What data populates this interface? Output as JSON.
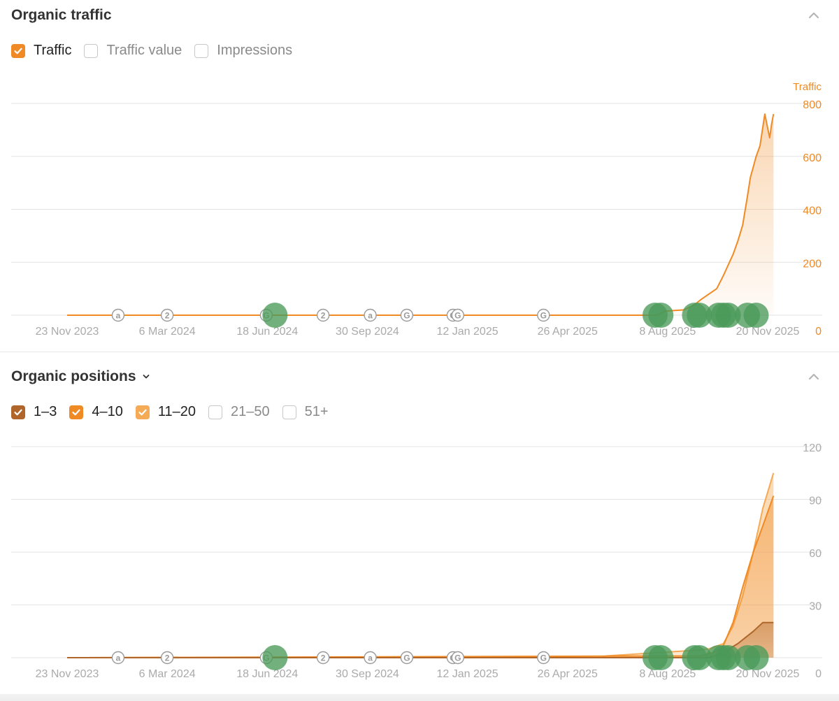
{
  "panels": {
    "traffic": {
      "title": "Organic traffic",
      "checkboxes": [
        {
          "label": "Traffic",
          "checked": true,
          "color": "#f08a24"
        },
        {
          "label": "Traffic value",
          "checked": false
        },
        {
          "label": "Impressions",
          "checked": false
        }
      ]
    },
    "positions": {
      "title": "Organic positions",
      "checkboxes": [
        {
          "label": "1–3",
          "checked": true,
          "color": "#b0662a"
        },
        {
          "label": "4–10",
          "checked": true,
          "color": "#f08a24"
        },
        {
          "label": "11–20",
          "checked": true,
          "color": "#f5aa55"
        },
        {
          "label": "21–50",
          "checked": false
        },
        {
          "label": "51+",
          "checked": false
        }
      ]
    }
  },
  "colors": {
    "traffic_line": "#f08a24",
    "pos_1_3": "#b0662a",
    "pos_4_10": "#f08a24",
    "pos_11_20": "#f5aa55",
    "axis_text": "#aaaaaa",
    "traffic_axis_text": "#f08a24",
    "gridline": "#e3e3e3",
    "update_dot": "#4a9a5a"
  },
  "chart_data": [
    {
      "type": "area",
      "title": "Organic traffic",
      "ylabel": "Traffic",
      "ylim": [
        0,
        800
      ],
      "yticks": [
        0,
        200,
        400,
        600,
        800
      ],
      "x_tick_labels": [
        "23 Nov 2023",
        "6 Mar 2024",
        "18 Jun 2024",
        "30 Sep 2024",
        "12 Jan 2025",
        "26 Apr 2025",
        "8 Aug 2025",
        "20 Nov 2025"
      ],
      "series": [
        {
          "values_by_date": [
            [
              "2023-11-23",
              0
            ],
            [
              "2025-07-28",
              0
            ],
            [
              "2025-08-05",
              15
            ],
            [
              "2025-08-15",
              18
            ],
            [
              "2025-08-25",
              20
            ],
            [
              "2025-09-05",
              40
            ],
            [
              "2025-09-12",
              60
            ],
            [
              "2025-09-20",
              80
            ],
            [
              "2025-09-28",
              100
            ],
            [
              "2025-10-05",
              150
            ],
            [
              "2025-10-10",
              190
            ],
            [
              "2025-10-15",
              230
            ],
            [
              "2025-10-20",
              280
            ],
            [
              "2025-10-25",
              340
            ],
            [
              "2025-10-30",
              450
            ],
            [
              "2025-11-02",
              520
            ],
            [
              "2025-11-05",
              560
            ],
            [
              "2025-11-08",
              600
            ],
            [
              "2025-11-12",
              640
            ],
            [
              "2025-11-17",
              760
            ],
            [
              "2025-11-22",
              670
            ],
            [
              "2025-11-24",
              720
            ],
            [
              "2025-11-26",
              760
            ]
          ]
        }
      ],
      "annotation_markers": [
        "a",
        "2",
        "G",
        "2",
        "a",
        "G",
        "G",
        "G",
        "G"
      ]
    },
    {
      "type": "area",
      "title": "Organic positions",
      "ylim": [
        0,
        120
      ],
      "yticks": [
        0,
        30,
        60,
        90,
        120
      ],
      "x_tick_labels": [
        "23 Nov 2023",
        "6 Mar 2024",
        "18 Jun 2024",
        "30 Sep 2024",
        "12 Jan 2025",
        "26 Apr 2025",
        "8 Aug 2025",
        "20 Nov 2025"
      ],
      "series": [
        {
          "name": "1–3",
          "values_by_date": [
            [
              "2023-11-23",
              0
            ],
            [
              "2025-09-20",
              0
            ],
            [
              "2025-10-05",
              3
            ],
            [
              "2025-10-20",
              8
            ],
            [
              "2025-11-05",
              15
            ],
            [
              "2025-11-15",
              20
            ],
            [
              "2025-11-26",
              20
            ]
          ]
        },
        {
          "name": "4–10",
          "values_by_date": [
            [
              "2023-11-23",
              0
            ],
            [
              "2025-09-10",
              1
            ],
            [
              "2025-09-25",
              3
            ],
            [
              "2025-10-05",
              7
            ],
            [
              "2025-10-15",
              20
            ],
            [
              "2025-10-25",
              40
            ],
            [
              "2025-11-05",
              60
            ],
            [
              "2025-11-15",
              75
            ],
            [
              "2025-11-26",
              92
            ]
          ]
        },
        {
          "name": "11–20",
          "values_by_date": [
            [
              "2023-11-23",
              0
            ],
            [
              "2025-06-01",
              0
            ],
            [
              "2025-06-05",
              1
            ],
            [
              "2025-08-01",
              3
            ],
            [
              "2025-09-01",
              4
            ],
            [
              "2025-09-20",
              5
            ],
            [
              "2025-10-05",
              8
            ],
            [
              "2025-10-15",
              18
            ],
            [
              "2025-10-25",
              35
            ],
            [
              "2025-11-05",
              60
            ],
            [
              "2025-11-15",
              85
            ],
            [
              "2025-11-26",
              105
            ]
          ]
        }
      ],
      "annotation_markers": [
        "a",
        "2",
        "G",
        "2",
        "a",
        "G",
        "G",
        "G",
        "G"
      ]
    }
  ]
}
